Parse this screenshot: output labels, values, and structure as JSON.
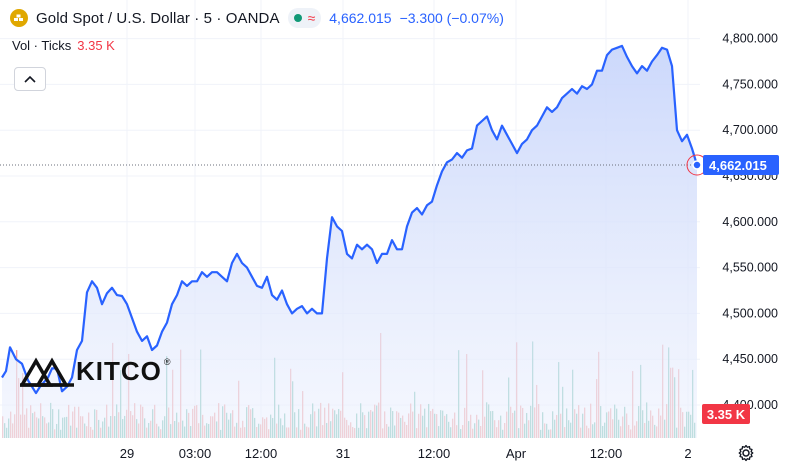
{
  "header": {
    "title": "Gold Spot / U.S. Dollar · 5 · OANDA",
    "price": "4,662.015",
    "change": "−3.300 (−0.07%)"
  },
  "volume": {
    "label": "Vol · Ticks",
    "value": "3.35 K"
  },
  "watermark": {
    "text": "KITCO",
    "mark": "®"
  },
  "price_axis": {
    "ticks": [
      "4,800.000",
      "4,750.000",
      "4,700.000",
      "4,650.000",
      "4,600.000",
      "4,550.000",
      "4,500.000",
      "4,450.000",
      "4,400.000"
    ],
    "last_label": "4,662.015",
    "vol_label": "3.35 K"
  },
  "time_axis": [
    "29",
    "03:00",
    "12:00",
    "31",
    "12:00",
    "Apr",
    "12:00",
    "2"
  ],
  "colors": {
    "line": "#2962ff",
    "area_top": "#c9d6fb",
    "vol_up": "#5fb5a5",
    "vol_down": "#ef8f8f",
    "accent_red": "#f23645"
  },
  "icons": {
    "logo": "gold-bars-icon",
    "collapse": "chevron-up-icon",
    "settings": "gear-icon"
  },
  "chart_data": {
    "type": "area",
    "ylim": [
      4386,
      4822
    ],
    "x": [
      0,
      4,
      8,
      14,
      20,
      26,
      30,
      34,
      38,
      42,
      46,
      50,
      55,
      60,
      65,
      70,
      75,
      80,
      85,
      90,
      95,
      100,
      105,
      110,
      115,
      120,
      125,
      130,
      135,
      140,
      145,
      150,
      155,
      160,
      165,
      170,
      175,
      180,
      185,
      190,
      195,
      200,
      205,
      210,
      215,
      220,
      225,
      230,
      235,
      240,
      245,
      250,
      255,
      260,
      265,
      270,
      275,
      280,
      285,
      290,
      295,
      300,
      305,
      310,
      315,
      320,
      325,
      330,
      335,
      340,
      345,
      350,
      355,
      360,
      365,
      370,
      375,
      380,
      385,
      390,
      395,
      400,
      405,
      410,
      415,
      420,
      425,
      430,
      435,
      440,
      445,
      450,
      455,
      460,
      465,
      470,
      475,
      480,
      485,
      490,
      495,
      500,
      505,
      510,
      515,
      520,
      525,
      530,
      535,
      540,
      545,
      550,
      555,
      560,
      565,
      570,
      575,
      580,
      585,
      590,
      595,
      600,
      605,
      610,
      615,
      620,
      625,
      630,
      635,
      640,
      645,
      650,
      655,
      660,
      665,
      670,
      675,
      680,
      685,
      690,
      695
    ],
    "values": [
      4430,
      4437,
      4463,
      4450,
      4445,
      4427,
      4420,
      4413,
      4420,
      4425,
      4430,
      4440,
      4440,
      4415,
      4420,
      4430,
      4460,
      4470,
      4523,
      4535,
      4528,
      4510,
      4522,
      4528,
      4520,
      4519,
      4510,
      4495,
      4480,
      4470,
      4475,
      4460,
      4465,
      4480,
      4490,
      4510,
      4520,
      4535,
      4530,
      4535,
      4535,
      4545,
      4540,
      4545,
      4545,
      4540,
      4535,
      4555,
      4565,
      4555,
      4550,
      4540,
      4530,
      4528,
      4540,
      4520,
      4515,
      4525,
      4510,
      4500,
      4505,
      4508,
      4500,
      4505,
      4500,
      4500,
      4560,
      4605,
      4595,
      4590,
      4565,
      4560,
      4575,
      4570,
      4575,
      4570,
      4555,
      4565,
      4565,
      4580,
      4570,
      4570,
      4595,
      4610,
      4615,
      4608,
      4618,
      4622,
      4640,
      4655,
      4665,
      4668,
      4675,
      4670,
      4678,
      4680,
      4705,
      4710,
      4715,
      4700,
      4690,
      4705,
      4695,
      4685,
      4675,
      4685,
      4690,
      4700,
      4705,
      4715,
      4725,
      4720,
      4725,
      4735,
      4740,
      4745,
      4740,
      4748,
      4745,
      4750,
      4765,
      4765,
      4782,
      4788,
      4790,
      4792,
      4780,
      4770,
      4762,
      4770,
      4765,
      4775,
      4782,
      4790,
      4788,
      4770,
      4700,
      4688,
      4695,
      4680,
      4662
    ]
  }
}
